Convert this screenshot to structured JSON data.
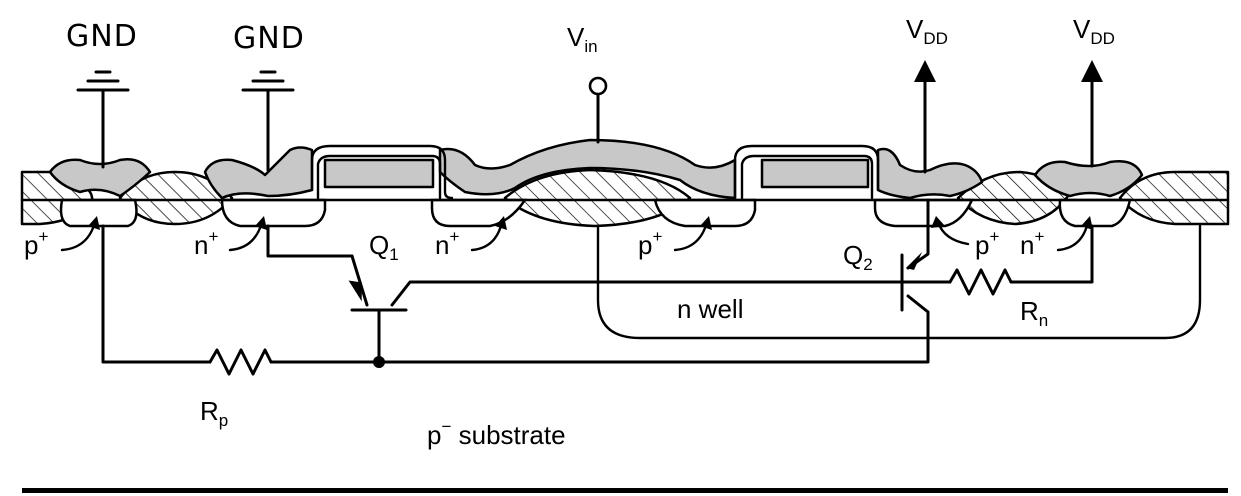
{
  "labels": {
    "gnd1": "GND",
    "gnd2": "GND",
    "vin": "V",
    "vin_sub": "in",
    "vdd1": "V",
    "vdd1_sub": "DD",
    "vdd2": "V",
    "vdd2_sub": "DD",
    "p_plus_left": "p",
    "n_plus_left": "n",
    "q1": "Q",
    "q1_sub": "1",
    "n_plus_mid": "n",
    "p_plus_mid": "p",
    "q2": "Q",
    "q2_sub": "2",
    "p_plus_right": "p",
    "n_plus_right": "n",
    "n_well": "n well",
    "rn": "R",
    "rn_sub": "n",
    "rp": "R",
    "rp_sub": "p",
    "substrate": "p",
    "substrate_rest": " substrate",
    "plus": "+",
    "minus": "−"
  }
}
